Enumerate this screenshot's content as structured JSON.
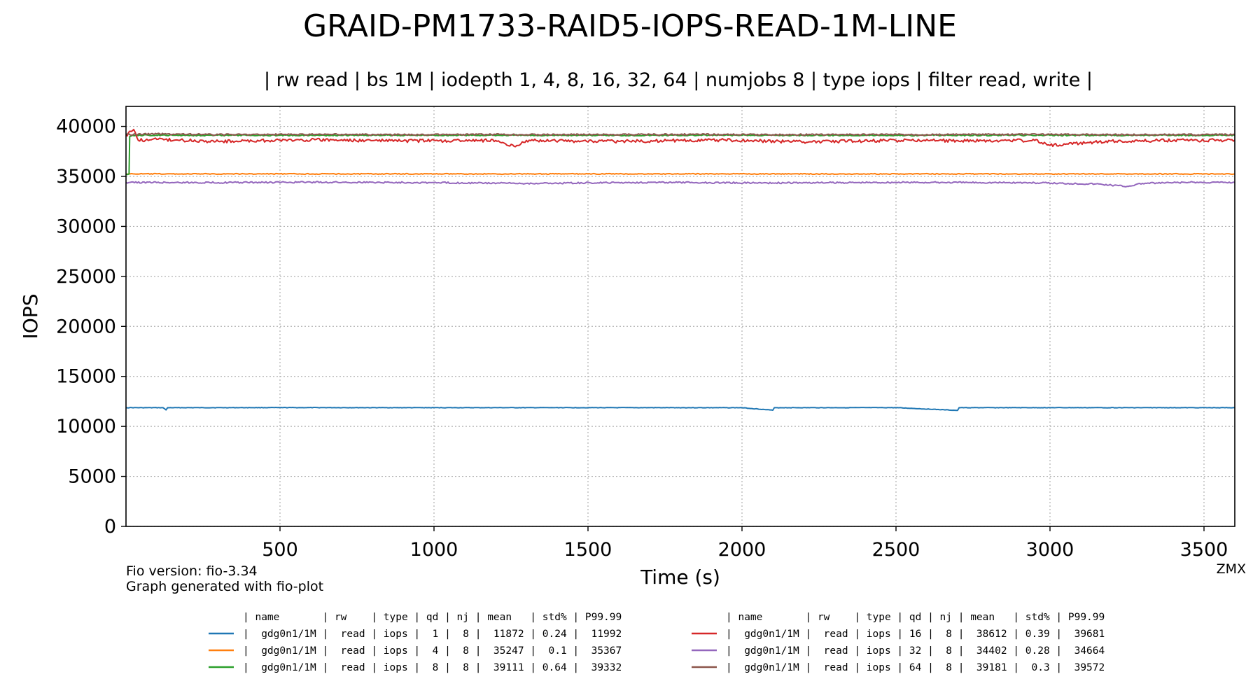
{
  "chart_data": {
    "type": "line",
    "title": "GRAID-PM1733-RAID5-IOPS-READ-1M-LINE",
    "subtitle": "| rw read | bs 1M | iodepth 1, 4, 8, 16, 32, 64 | numjobs 8 | type iops | filter read, write |",
    "xlabel": "Time (s)",
    "ylabel": "IOPS",
    "xlim": [
      0,
      3600
    ],
    "ylim": [
      0,
      42000
    ],
    "xticks": [
      "500",
      "1000",
      "1500",
      "2000",
      "2500",
      "3000",
      "3500"
    ],
    "yticks": [
      "0",
      "5000",
      "10000",
      "15000",
      "20000",
      "25000",
      "30000",
      "35000",
      "40000"
    ],
    "grid": true,
    "footnote_left": [
      "Fio version: fio-3.34",
      "Graph generated with fio-plot"
    ],
    "footnote_right": "ZMX",
    "series": [
      {
        "color": "#1f77b4",
        "x": [
          0,
          120,
          130,
          135,
          500,
          1000,
          1500,
          2000,
          2100,
          2105,
          2110,
          2500,
          2700,
          2705,
          2710,
          3000,
          3600
        ],
        "y": [
          11872,
          11870,
          11650,
          11870,
          11880,
          11872,
          11875,
          11870,
          11620,
          11870,
          11872,
          11875,
          11600,
          11870,
          11872,
          11875,
          11872
        ]
      },
      {
        "color": "#ff7f0e",
        "x": [
          0,
          500,
          1000,
          1500,
          2000,
          2500,
          3000,
          3600
        ],
        "y": [
          35247,
          35250,
          35245,
          35248,
          35250,
          35247,
          35246,
          35247
        ]
      },
      {
        "color": "#2ca02c",
        "x": [
          0,
          10,
          12,
          20,
          500,
          1000,
          1500,
          2000,
          2500,
          3000,
          3600
        ],
        "y": [
          35247,
          35247,
          39000,
          39111,
          39110,
          39115,
          39108,
          39112,
          39110,
          39111,
          39111
        ]
      },
      {
        "color": "#d62728",
        "x": [
          0,
          25,
          40,
          100,
          300,
          600,
          900,
          1200,
          1260,
          1300,
          1600,
          1900,
          2200,
          2500,
          2800,
          2950,
          3000,
          3200,
          3400,
          3600
        ],
        "y": [
          39100,
          39700,
          38600,
          38700,
          38500,
          38650,
          38550,
          38600,
          38000,
          38600,
          38500,
          38650,
          38450,
          38600,
          38550,
          38600,
          38100,
          38550,
          38600,
          38612
        ]
      },
      {
        "color": "#9467bd",
        "x": [
          0,
          300,
          600,
          900,
          1300,
          1700,
          2100,
          2500,
          2900,
          3150,
          3250,
          3300,
          3450,
          3600
        ],
        "y": [
          34402,
          34380,
          34420,
          34400,
          34300,
          34402,
          34350,
          34402,
          34380,
          34250,
          34000,
          34300,
          34402,
          34402
        ]
      },
      {
        "color": "#8c564b",
        "x": [
          0,
          100,
          300,
          600,
          900,
          1200,
          1500,
          1800,
          2100,
          2400,
          2700,
          3000,
          3300,
          3600
        ],
        "y": [
          39181,
          39250,
          39180,
          39200,
          39170,
          39190,
          39180,
          39200,
          39175,
          39185,
          39180,
          39200,
          39170,
          39181
        ]
      }
    ]
  },
  "legend": {
    "left": {
      "header": "| name       | rw    | type | qd | nj | mean   | std% | P99.99",
      "rows": [
        {
          "color": "#1f77b4",
          "text": "|  gdg0n1/1M |  read | iops |  1 |  8 |  11872 | 0.24 |  11992"
        },
        {
          "color": "#ff7f0e",
          "text": "|  gdg0n1/1M |  read | iops |  4 |  8 |  35247 |  0.1 |  35367"
        },
        {
          "color": "#2ca02c",
          "text": "|  gdg0n1/1M |  read | iops |  8 |  8 |  39111 | 0.64 |  39332"
        }
      ]
    },
    "right": {
      "header": "| name       | rw    | type | qd | nj | mean   | std% | P99.99",
      "rows": [
        {
          "color": "#d62728",
          "text": "|  gdg0n1/1M |  read | iops | 16 |  8 |  38612 | 0.39 |  39681"
        },
        {
          "color": "#9467bd",
          "text": "|  gdg0n1/1M |  read | iops | 32 |  8 |  34402 | 0.28 |  34664"
        },
        {
          "color": "#8c564b",
          "text": "|  gdg0n1/1M |  read | iops | 64 |  8 |  39181 |  0.3 |  39572"
        }
      ]
    }
  }
}
